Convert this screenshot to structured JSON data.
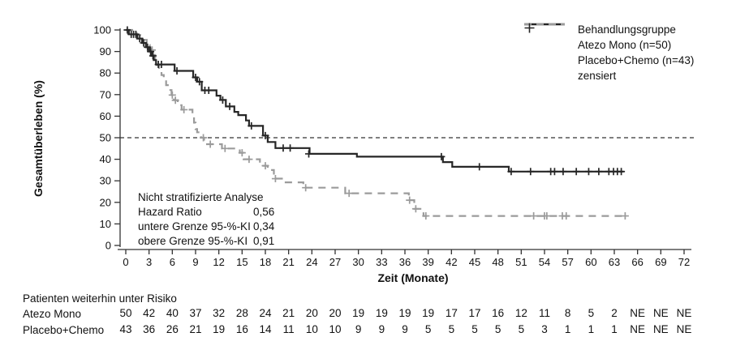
{
  "chart_data": {
    "type": "line",
    "subtype": "kaplan-meier-step",
    "title": "",
    "xlabel": "Zeit (Monate)",
    "ylabel": "Gesamtüberleben (%)",
    "xlim": [
      0,
      72
    ],
    "ylim": [
      0,
      100
    ],
    "x_ticks": [
      0,
      3,
      6,
      9,
      12,
      15,
      18,
      21,
      24,
      27,
      30,
      33,
      36,
      39,
      42,
      45,
      48,
      51,
      54,
      57,
      60,
      63,
      66,
      69,
      72
    ],
    "y_ticks": [
      0,
      10,
      20,
      30,
      40,
      50,
      60,
      70,
      80,
      90,
      100
    ],
    "grid": false,
    "reference_line_y": 50,
    "legend": {
      "position": "top-right",
      "title": "Behandlungsgruppe",
      "censored_label": "zensiert"
    },
    "series": [
      {
        "name": "Atezo Mono (n=50)",
        "data_name": "atezo-mono-curve",
        "color": "#262626",
        "dash": "solid",
        "end_t": 64.2,
        "steps": [
          [
            0,
            100
          ],
          [
            0.4,
            98
          ],
          [
            1.5,
            96
          ],
          [
            2.1,
            94
          ],
          [
            2.6,
            92
          ],
          [
            3.0,
            90
          ],
          [
            3.3,
            88
          ],
          [
            3.6,
            86
          ],
          [
            3.9,
            84
          ],
          [
            6.3,
            81
          ],
          [
            8.7,
            78
          ],
          [
            9.2,
            76
          ],
          [
            9.8,
            72
          ],
          [
            11.7,
            69.5
          ],
          [
            12.2,
            67.5
          ],
          [
            12.9,
            64.5
          ],
          [
            14.0,
            62
          ],
          [
            14.5,
            60.5
          ],
          [
            15.5,
            58
          ],
          [
            15.9,
            55.5
          ],
          [
            17.7,
            51
          ],
          [
            18.3,
            48
          ],
          [
            19.3,
            45.2
          ],
          [
            23.7,
            42.5
          ],
          [
            29.8,
            41.2
          ],
          [
            40.9,
            38.7
          ],
          [
            42.1,
            36.5
          ],
          [
            49.4,
            34.3
          ]
        ],
        "censored": [
          [
            0.2,
            100
          ],
          [
            0.7,
            98
          ],
          [
            1.0,
            98
          ],
          [
            1.3,
            98
          ],
          [
            1.8,
            96
          ],
          [
            2.3,
            94
          ],
          [
            2.8,
            92
          ],
          [
            3.2,
            90
          ],
          [
            3.5,
            88
          ],
          [
            4.2,
            84
          ],
          [
            4.6,
            84
          ],
          [
            6.6,
            81
          ],
          [
            9.0,
            78
          ],
          [
            9.5,
            76
          ],
          [
            10.2,
            72
          ],
          [
            10.7,
            72
          ],
          [
            12.5,
            67.5
          ],
          [
            13.4,
            64.5
          ],
          [
            16.2,
            55.5
          ],
          [
            18.0,
            51
          ],
          [
            20.3,
            45.2
          ],
          [
            21.2,
            45.2
          ],
          [
            23.6,
            42.5
          ],
          [
            40.7,
            41.2
          ],
          [
            45.6,
            36.5
          ],
          [
            49.7,
            34.3
          ],
          [
            52.2,
            34.3
          ],
          [
            54.8,
            34.3
          ],
          [
            55.3,
            34.3
          ],
          [
            56.4,
            34.3
          ],
          [
            58.1,
            34.3
          ],
          [
            59.7,
            34.3
          ],
          [
            61.0,
            34.3
          ],
          [
            62.3,
            34.3
          ],
          [
            62.9,
            34.3
          ],
          [
            63.4,
            34.3
          ],
          [
            63.9,
            34.3
          ]
        ]
      },
      {
        "name": "Placebo+Chemo (n=43)",
        "data_name": "placebo-chemo-curve",
        "color": "#9b9b9b",
        "dash": "dashed",
        "end_t": 64.7,
        "steps": [
          [
            0,
            100
          ],
          [
            1.4,
            97.7
          ],
          [
            2.2,
            95.4
          ],
          [
            2.7,
            93
          ],
          [
            3.1,
            90.7
          ],
          [
            3.6,
            88.4
          ],
          [
            3.8,
            86
          ],
          [
            4.0,
            83.7
          ],
          [
            4.3,
            81.4
          ],
          [
            4.6,
            79.1
          ],
          [
            4.9,
            76.7
          ],
          [
            5.2,
            74.4
          ],
          [
            5.6,
            72.1
          ],
          [
            5.9,
            69.8
          ],
          [
            6.2,
            67.4
          ],
          [
            6.7,
            65.1
          ],
          [
            7.2,
            63
          ],
          [
            8.6,
            60
          ],
          [
            8.8,
            57
          ],
          [
            9.0,
            54
          ],
          [
            9.2,
            52.5
          ],
          [
            9.7,
            50
          ],
          [
            10.1,
            47
          ],
          [
            12.4,
            45
          ],
          [
            14.7,
            43
          ],
          [
            15.2,
            40
          ],
          [
            17.3,
            37
          ],
          [
            18.3,
            35
          ],
          [
            19.1,
            31
          ],
          [
            20.4,
            29.3
          ],
          [
            22.9,
            26.8
          ],
          [
            28.3,
            24.2
          ],
          [
            36.5,
            21
          ],
          [
            37.2,
            17
          ],
          [
            38.4,
            13.7
          ]
        ],
        "censored": [
          [
            3.4,
            90.7
          ],
          [
            6.0,
            69.8
          ],
          [
            6.4,
            67.4
          ],
          [
            7.5,
            63
          ],
          [
            10.0,
            50
          ],
          [
            10.9,
            47
          ],
          [
            12.8,
            45
          ],
          [
            15.0,
            43
          ],
          [
            15.9,
            40
          ],
          [
            18.0,
            37
          ],
          [
            19.3,
            31
          ],
          [
            23.2,
            26.8
          ],
          [
            28.8,
            24.2
          ],
          [
            36.6,
            21
          ],
          [
            37.4,
            17
          ],
          [
            38.7,
            13.7
          ],
          [
            52.6,
            13.7
          ],
          [
            54.0,
            13.7
          ],
          [
            54.3,
            13.7
          ],
          [
            56.3,
            13.7
          ],
          [
            56.8,
            13.7
          ],
          [
            64.4,
            13.7
          ]
        ]
      }
    ],
    "annotation": {
      "title": "Nicht stratifizierte Analyse",
      "rows": [
        {
          "label": "Hazard Ratio",
          "value": "0,56"
        },
        {
          "label": "untere Grenze 95-%-KI",
          "value": "0,34"
        },
        {
          "label": "obere Grenze 95-%-KI",
          "value": "0,91"
        }
      ]
    },
    "risk_table": {
      "title": "Patienten weiterhin unter Risiko",
      "times": [
        0,
        3,
        6,
        9,
        12,
        15,
        18,
        21,
        24,
        27,
        30,
        33,
        36,
        39,
        42,
        45,
        48,
        51,
        54,
        57,
        60,
        63,
        66,
        69,
        72
      ],
      "rows": [
        {
          "label": "Atezo Mono",
          "counts": [
            "50",
            "42",
            "40",
            "37",
            "32",
            "28",
            "24",
            "21",
            "20",
            "20",
            "19",
            "19",
            "19",
            "19",
            "17",
            "17",
            "16",
            "12",
            "11",
            "8",
            "5",
            "2",
            "NE",
            "NE",
            "NE"
          ]
        },
        {
          "label": "Placebo+Chemo",
          "counts": [
            "43",
            "36",
            "26",
            "21",
            "19",
            "16",
            "14",
            "11",
            "10",
            "10",
            "9",
            "9",
            "9",
            "5",
            "5",
            "5",
            "5",
            "5",
            "3",
            "1",
            "1",
            "1",
            "NE",
            "NE",
            "NE"
          ]
        }
      ]
    },
    "style": {
      "axis_color": "#333333",
      "text_color": "#111111",
      "reference_line_color": "#333333"
    }
  }
}
